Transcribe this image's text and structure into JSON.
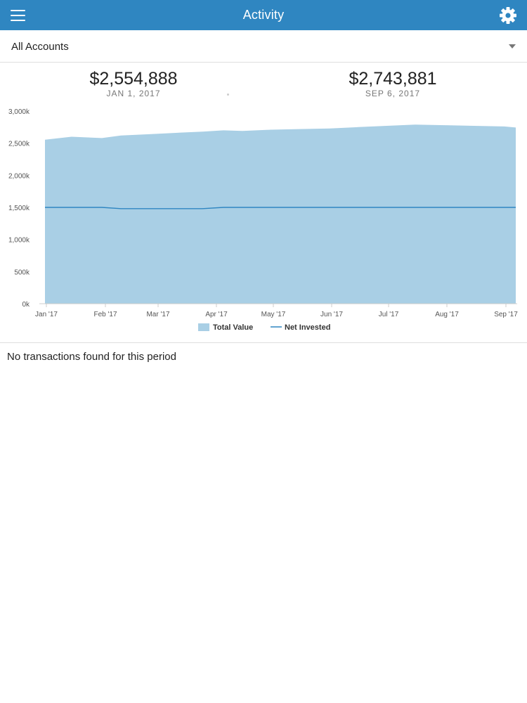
{
  "header": {
    "title": "Activity",
    "menu_icon": "hamburger-menu-icon",
    "settings_icon": "gear-icon",
    "background_color": "#2f86c1"
  },
  "account_selector": {
    "value": "All Accounts",
    "icon": "caret-down-icon"
  },
  "summary": {
    "start": {
      "value": "$2,554,888",
      "date": "JAN 1, 2017"
    },
    "end": {
      "value": "$2,743,881",
      "date": "SEP 6, 2017"
    }
  },
  "chart_data": {
    "type": "area",
    "x": [
      "2017-01-01",
      "2017-01-15",
      "2017-01-31",
      "2017-02-10",
      "2017-02-25",
      "2017-03-10",
      "2017-03-25",
      "2017-04-05",
      "2017-04-15",
      "2017-04-30",
      "2017-05-15",
      "2017-05-31",
      "2017-06-15",
      "2017-06-30",
      "2017-07-15",
      "2017-07-31",
      "2017-08-15",
      "2017-08-31",
      "2017-09-06"
    ],
    "x_ticks": [
      "Jan '17",
      "Feb '17",
      "Mar '17",
      "Apr '17",
      "May '17",
      "Jun '17",
      "Jul '17",
      "Aug '17",
      "Sep '17"
    ],
    "y_ticks": [
      "0k",
      "500k",
      "1,000k",
      "1,500k",
      "2,000k",
      "2,500k",
      "3,000k"
    ],
    "ylim": [
      0,
      3000000
    ],
    "series": [
      {
        "name": "Total Value",
        "type": "area",
        "color": "#a9cfe5",
        "values": [
          2554888,
          2600000,
          2580000,
          2620000,
          2640000,
          2660000,
          2680000,
          2700000,
          2690000,
          2710000,
          2720000,
          2730000,
          2750000,
          2770000,
          2790000,
          2780000,
          2770000,
          2760000,
          2743881
        ]
      },
      {
        "name": "Net Invested",
        "type": "line",
        "color": "#2f86c1",
        "values": [
          1500000,
          1500000,
          1500000,
          1480000,
          1480000,
          1480000,
          1480000,
          1500000,
          1500000,
          1500000,
          1500000,
          1500000,
          1500000,
          1500000,
          1500000,
          1500000,
          1500000,
          1500000,
          1500000
        ]
      }
    ],
    "grid": false,
    "legend_position": "bottom"
  },
  "transactions": {
    "empty_message": "No transactions found for this period"
  }
}
